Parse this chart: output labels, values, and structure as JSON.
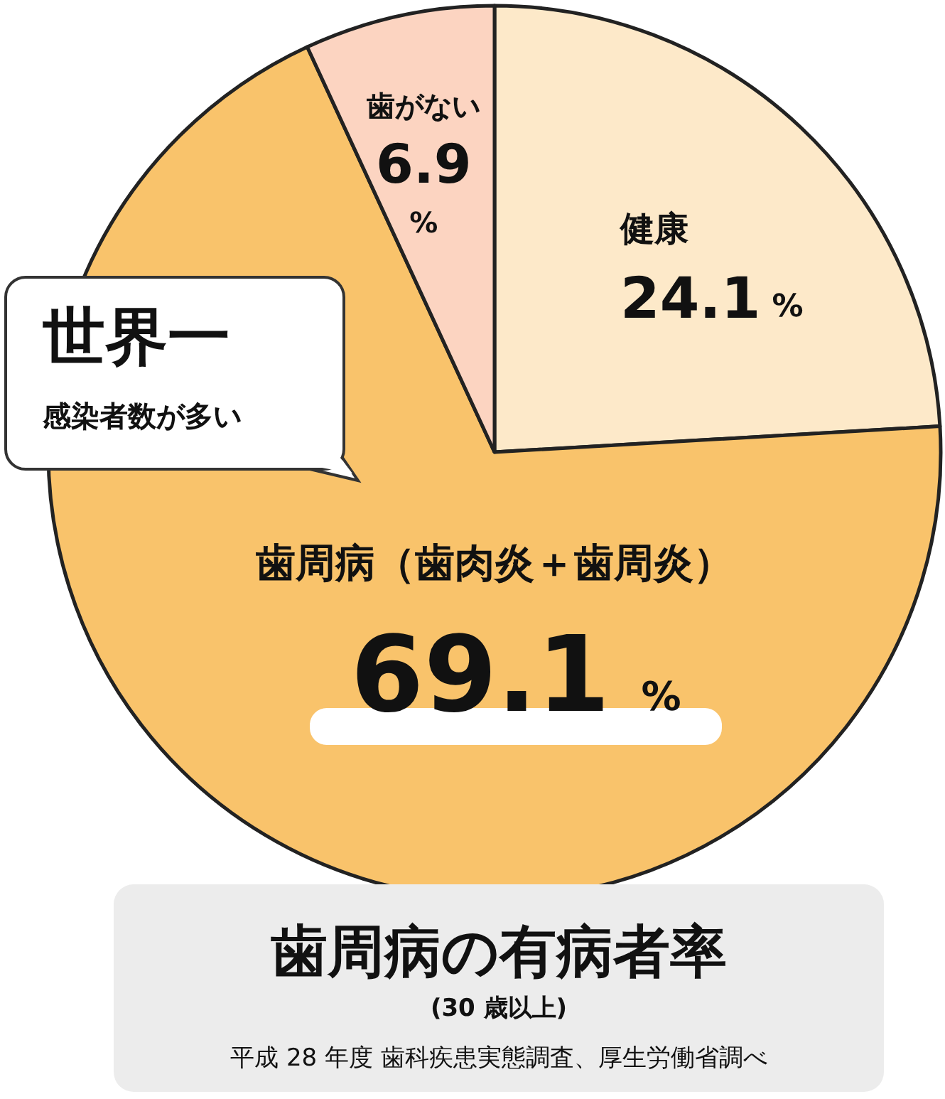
{
  "chart_data": {
    "type": "pie",
    "title": "歯周病の有病者率",
    "subtitle": "(30 歳以上)",
    "categories": [
      "健康",
      "歯周病（歯肉炎＋歯周炎）",
      "歯がない"
    ],
    "values": [
      24.1,
      69.1,
      6.9
    ],
    "colors": [
      "#fde9c9",
      "#f9c36b",
      "#fcd4c1"
    ],
    "value_labels": [
      "24.1%",
      "69.1%",
      "6.9%"
    ],
    "annotations": [
      "世界一",
      "感染者数が多い",
      "平成 28 年度 歯科疾患実態調査、厚生労働省調べ"
    ]
  }
}
